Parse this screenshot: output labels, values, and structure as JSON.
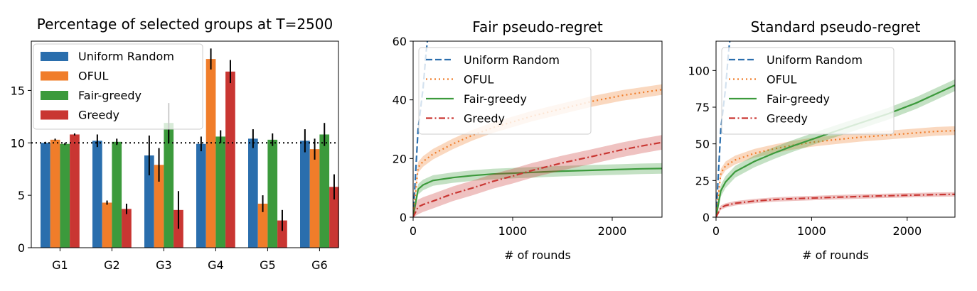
{
  "colors": {
    "Uniform Random": "#2a6ead",
    "OFUL": "#f07d2a",
    "Fair-greedy": "#3c9a3c",
    "Greedy": "#c93632"
  },
  "chart_data": [
    {
      "type": "bar",
      "title": "Percentage of selected groups at T=2500",
      "xlabel": "",
      "ylabel": "",
      "categories": [
        "G1",
        "G2",
        "G3",
        "G4",
        "G5",
        "G6"
      ],
      "ylim": [
        0,
        19.7
      ],
      "yticks": [
        0,
        5,
        10,
        15
      ],
      "reference_line": 10,
      "legend": "upper-left",
      "grid": false,
      "series": [
        {
          "name": "Uniform Random",
          "values": [
            10.0,
            10.2,
            8.8,
            9.9,
            10.4,
            10.2
          ],
          "err": [
            0.1,
            0.6,
            1.9,
            0.7,
            0.9,
            1.1
          ]
        },
        {
          "name": "OFUL",
          "values": [
            10.3,
            4.3,
            7.9,
            18.0,
            4.2,
            9.4
          ],
          "err": [
            0.1,
            0.2,
            1.6,
            1.0,
            0.8,
            1.0
          ]
        },
        {
          "name": "Fair-greedy",
          "values": [
            9.9,
            10.1,
            11.9,
            10.6,
            10.3,
            10.8
          ],
          "err": [
            0.1,
            0.3,
            1.9,
            0.6,
            0.6,
            1.1
          ]
        },
        {
          "name": "Greedy",
          "values": [
            10.8,
            3.7,
            3.6,
            16.8,
            2.6,
            5.8
          ],
          "err": [
            0.1,
            0.5,
            1.8,
            1.1,
            1.0,
            1.2
          ]
        }
      ]
    },
    {
      "type": "line",
      "title": "Fair pseudo-regret",
      "xlabel": "# of rounds",
      "ylabel": "",
      "xlim": [
        0,
        2500
      ],
      "ylim": [
        0,
        60
      ],
      "xticks": [
        0,
        1000,
        2000
      ],
      "yticks": [
        0,
        20,
        40,
        60
      ],
      "legend": "upper-left",
      "grid": false,
      "x": [
        0,
        50,
        100,
        200,
        400,
        600,
        800,
        1000,
        1200,
        1500,
        1800,
        2100,
        2300,
        2500
      ],
      "series": [
        {
          "name": "Uniform Random",
          "style": "dashed",
          "x": [
            0,
            50,
            100,
            130,
            150
          ],
          "values": [
            0,
            30,
            44,
            56,
            62
          ],
          "band": 0
        },
        {
          "name": "OFUL",
          "style": "dotted",
          "values": [
            0,
            17,
            19,
            21.5,
            25,
            28,
            30.5,
            32.5,
            34.5,
            37,
            39.5,
            41.5,
            42.5,
            43.5
          ],
          "band": 1.8
        },
        {
          "name": "Fair-greedy",
          "style": "solid",
          "values": [
            0,
            9.5,
            11,
            12.5,
            13.5,
            14.2,
            14.7,
            15,
            15.3,
            15.7,
            16,
            16.3,
            16.5,
            16.6
          ],
          "band": 1.8
        },
        {
          "name": "Greedy",
          "style": "dashdot",
          "values": [
            0,
            3.5,
            4.3,
            5.5,
            8,
            10,
            12.2,
            14,
            16,
            18.5,
            20.7,
            23,
            24.3,
            25.5
          ],
          "band": 2.5
        }
      ]
    },
    {
      "type": "line",
      "title": "Standard pseudo-regret",
      "xlabel": "# of rounds",
      "ylabel": "",
      "xlim": [
        0,
        2500
      ],
      "ylim": [
        0,
        120
      ],
      "xticks": [
        0,
        1000,
        2000
      ],
      "yticks": [
        0,
        25,
        50,
        75,
        100
      ],
      "legend": "upper-left",
      "grid": false,
      "x": [
        0,
        50,
        100,
        200,
        400,
        600,
        800,
        1000,
        1200,
        1500,
        1800,
        2100,
        2300,
        2500
      ],
      "series": [
        {
          "name": "Uniform Random",
          "style": "dashed",
          "x": [
            0,
            50,
            100,
            130,
            150
          ],
          "values": [
            0,
            60,
            88,
            112,
            124
          ],
          "band": 0
        },
        {
          "name": "OFUL",
          "style": "dotted",
          "values": [
            0,
            30,
            35,
            39,
            43.5,
            46.5,
            49,
            51,
            52.5,
            54.5,
            56,
            57.5,
            58.5,
            59
          ],
          "band": 3
        },
        {
          "name": "Fair-greedy",
          "style": "solid",
          "values": [
            0,
            18,
            24,
            31,
            38,
            43.5,
            48.5,
            53,
            57.5,
            64,
            70.5,
            78,
            84,
            90
          ],
          "band": 4
        },
        {
          "name": "Greedy",
          "style": "dashdot",
          "values": [
            0,
            6.5,
            8,
            9.5,
            11,
            12,
            12.6,
            13,
            13.5,
            14.1,
            14.6,
            15.1,
            15.4,
            15.6
          ],
          "band": 1.5
        }
      ]
    }
  ]
}
